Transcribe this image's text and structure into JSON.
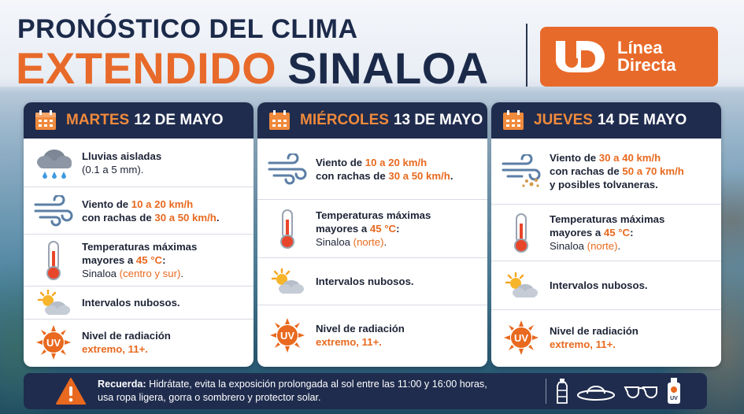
{
  "header": {
    "title_line1": "PRONÓSTICO DEL CLIMA",
    "title_extendido": "EXTENDIDO",
    "title_region": "SINALOA",
    "brand_logo_line1": "Línea",
    "brand_logo_line2": "Directa",
    "brand_logo_mark": "LD",
    "accent_color": "#e86a2a",
    "navy_color": "#1f2c4e"
  },
  "days": [
    {
      "weekday": "MARTES",
      "date": "12 DE MAYO",
      "rows": [
        {
          "icon": "rain-cloud-icon",
          "line1": "Lluvias aisladas",
          "line2": "(0.1 a 5 mm)."
        },
        {
          "icon": "wind-icon",
          "pre": "Viento de ",
          "v1": "10 a 20 km/h",
          "mid": "con rachas de ",
          "v2": "30 a 50 km/h",
          "post": "."
        },
        {
          "icon": "thermometer-icon",
          "line1": "Temperaturas máximas",
          "pre": "mayores a ",
          "v1": "45 °C",
          "post": ":",
          "place": "Sinaloa ",
          "region": "(centro y sur)",
          "end": "."
        },
        {
          "icon": "partly-cloudy-icon",
          "line1": "Intervalos nubosos."
        },
        {
          "icon": "uv-sun-icon",
          "line1": "Nivel de radiación",
          "v1": "extremo, 11+."
        }
      ]
    },
    {
      "weekday": "MIÉRCOLES",
      "date": "13 DE MAYO",
      "rows": [
        {
          "icon": "wind-icon",
          "pre": "Viento de ",
          "v1": "10 a 20 km/h",
          "mid": "con rachas de ",
          "v2": "30 a 50 km/h",
          "post": "."
        },
        {
          "icon": "thermometer-icon",
          "line1": "Temperaturas máximas",
          "pre": "mayores a ",
          "v1": "45 °C",
          "post": ":",
          "place": "Sinaloa ",
          "region": "(norte)",
          "end": "."
        },
        {
          "icon": "partly-cloudy-icon",
          "line1": "Intervalos nubosos."
        },
        {
          "icon": "uv-sun-icon",
          "line1": "Nivel de radiación",
          "v1": "extremo, 11+."
        }
      ]
    },
    {
      "weekday": "JUEVES",
      "date": "14 DE MAYO",
      "rows": [
        {
          "icon": "wind-dust-icon",
          "pre": "Viento de ",
          "v1": "30 a 40 km/h",
          "mid": "con rachas de ",
          "v2": "50 a 70 km/h",
          "extra": "y posibles tolvaneras."
        },
        {
          "icon": "thermometer-icon",
          "line1": "Temperaturas máximas",
          "pre": "mayores a ",
          "v1": "45 °C",
          "post": ":",
          "place": "Sinaloa ",
          "region": "(norte)",
          "end": "."
        },
        {
          "icon": "partly-cloudy-icon",
          "line1": "Intervalos nubosos."
        },
        {
          "icon": "uv-sun-icon",
          "line1": "Nivel de radiación",
          "v1": "extremo, 11+."
        }
      ]
    }
  ],
  "footer": {
    "label": "Recuerda:",
    "text1": " Hidrátate, evita la exposición prolongada al sol entre las 11:00 y 16:00 horas,",
    "text2": "usa ropa ligera, gorra o sombrero y protector solar.",
    "accessories": [
      "water-bottle-icon",
      "hat-icon",
      "sunglasses-icon",
      "sunscreen-icon"
    ],
    "sunscreen_label": "UV"
  },
  "uv_label": "UV"
}
